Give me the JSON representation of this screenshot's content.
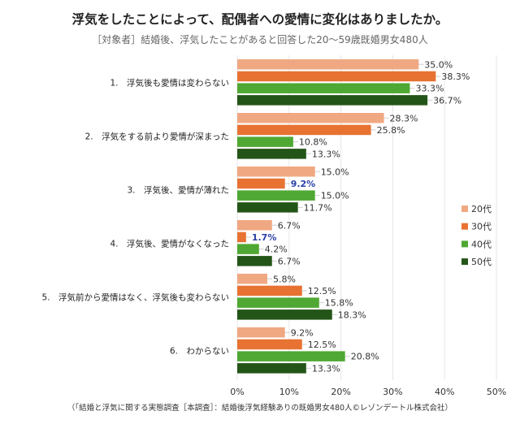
{
  "chart_data": {
    "type": "bar",
    "orientation": "horizontal",
    "title": "浮気をしたことによって、配偶者への愛情に変化はありましたか。",
    "subtitle": "［対象者］結婚後、浮気したことがあると回答した20～59歳既婚男女480人",
    "source": "（「結婚と浮気に関する実態調査［本調査］：結婚後浮気経験ありの既婚男女480人©レゾンデートル株式会社）",
    "categories": [
      "1.　浮気後も愛情は変わらない",
      "2.　浮気をする前より愛情が深まった",
      "3.　浮気後、愛情が薄れた",
      "4.　浮気後、愛情がなくなった",
      "5.　浮気前から愛情はなく、浮気後も変わらない",
      "6.　わからない"
    ],
    "series": [
      {
        "name": "20代",
        "color": "#f0a882",
        "values": [
          35.0,
          28.3,
          15.0,
          6.7,
          5.8,
          9.2
        ]
      },
      {
        "name": "30代",
        "color": "#e87232",
        "values": [
          38.3,
          25.8,
          9.2,
          1.7,
          12.5,
          12.5
        ]
      },
      {
        "name": "40代",
        "color": "#4fa833",
        "values": [
          33.3,
          10.8,
          15.0,
          4.2,
          15.8,
          20.8
        ]
      },
      {
        "name": "50代",
        "color": "#245518",
        "values": [
          36.7,
          13.3,
          11.7,
          6.7,
          18.3,
          13.3
        ]
      }
    ],
    "highlighted_labels": [
      {
        "series": "30代",
        "category_index": 2
      },
      {
        "series": "30代",
        "category_index": 3
      }
    ],
    "highlight_color": "#2a3fa8",
    "xlim": [
      0,
      50
    ],
    "xticks": [
      "0%",
      "10%",
      "20%",
      "30%",
      "40%",
      "50%"
    ],
    "grid": true,
    "legend": "right"
  }
}
